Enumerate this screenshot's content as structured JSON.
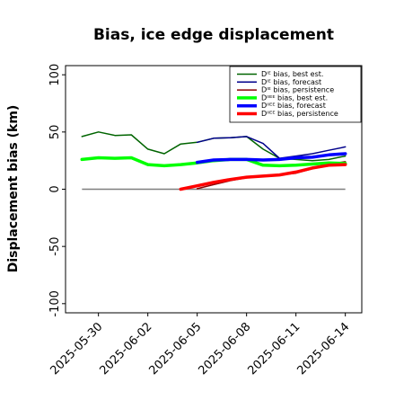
{
  "chart_data": {
    "type": "line",
    "title": "Bias, ice edge displacement",
    "xlabel": "",
    "ylabel": "Displacement bias (km)",
    "x_ticks": [
      "2025-05-30",
      "2025-06-02",
      "2025-06-05",
      "2025-06-08",
      "2025-06-11",
      "2025-06-14"
    ],
    "highlighted_tick": "2025-06-05",
    "highlight_color": "#228B22",
    "y_ticks": [
      -100,
      -50,
      0,
      50,
      100
    ],
    "ylim": [
      -108,
      108
    ],
    "xlim": [
      "2025-05-28",
      "2025-06-15"
    ],
    "grid": false,
    "legend_position": "top-right",
    "reference_line": 0,
    "series": [
      {
        "name": "Dᴵᴱ bias, best est.",
        "color": "#006400",
        "width": 1.5,
        "points": [
          [
            "2025-05-29",
            46
          ],
          [
            "2025-05-30",
            50
          ],
          [
            "2025-05-31",
            47
          ],
          [
            "2025-06-01",
            47.5
          ],
          [
            "2025-06-02",
            35
          ],
          [
            "2025-06-03",
            31
          ],
          [
            "2025-06-04",
            39.5
          ],
          [
            "2025-06-05",
            41
          ],
          [
            "2025-06-06",
            44.5
          ],
          [
            "2025-06-07",
            45
          ],
          [
            "2025-06-08",
            46
          ],
          [
            "2025-06-09",
            35
          ],
          [
            "2025-06-10",
            27
          ],
          [
            "2025-06-11",
            26
          ],
          [
            "2025-06-12",
            25
          ],
          [
            "2025-06-13",
            26
          ],
          [
            "2025-06-14",
            29
          ]
        ]
      },
      {
        "name": "Dᴵᴱ bias, forecast",
        "color": "#00008B",
        "width": 1.5,
        "points": [
          [
            "2025-06-05",
            41
          ],
          [
            "2025-06-06",
            44.5
          ],
          [
            "2025-06-07",
            45
          ],
          [
            "2025-06-08",
            46
          ],
          [
            "2025-06-09",
            40
          ],
          [
            "2025-06-10",
            27
          ],
          [
            "2025-06-11",
            29
          ],
          [
            "2025-06-12",
            31
          ],
          [
            "2025-06-13",
            34
          ],
          [
            "2025-06-14",
            37
          ]
        ]
      },
      {
        "name": "Dᴵᴱ bias, persistence",
        "color": "#8B0000",
        "width": 1.5,
        "points": [
          [
            "2025-06-05",
            0.5
          ],
          [
            "2025-06-06",
            4
          ],
          [
            "2025-06-07",
            7.5
          ],
          [
            "2025-06-08",
            10
          ],
          [
            "2025-06-09",
            12
          ],
          [
            "2025-06-10",
            12.5
          ],
          [
            "2025-06-11",
            14
          ],
          [
            "2025-06-12",
            18
          ],
          [
            "2025-06-13",
            22
          ],
          [
            "2025-06-14",
            24
          ]
        ]
      },
      {
        "name": "Dᴵᴵᴱᴱ bias, best est.",
        "color": "#00FF00",
        "width": 3.5,
        "points": [
          [
            "2025-05-29",
            26
          ],
          [
            "2025-05-30",
            27.5
          ],
          [
            "2025-05-31",
            27
          ],
          [
            "2025-06-01",
            27.5
          ],
          [
            "2025-06-02",
            21.5
          ],
          [
            "2025-06-03",
            20.5
          ],
          [
            "2025-06-04",
            21.5
          ],
          [
            "2025-06-05",
            23
          ],
          [
            "2025-06-06",
            25
          ],
          [
            "2025-06-07",
            26
          ],
          [
            "2025-06-08",
            26
          ],
          [
            "2025-06-09",
            21
          ],
          [
            "2025-06-10",
            20.5
          ],
          [
            "2025-06-11",
            21
          ],
          [
            "2025-06-12",
            22
          ],
          [
            "2025-06-13",
            23
          ],
          [
            "2025-06-14",
            22.5
          ]
        ]
      },
      {
        "name": "Dᴵᴵᴱᴱ bias, forecast",
        "color": "#0000FF",
        "width": 3.5,
        "points": [
          [
            "2025-06-05",
            23.5
          ],
          [
            "2025-06-06",
            25.5
          ],
          [
            "2025-06-07",
            26
          ],
          [
            "2025-06-08",
            26
          ],
          [
            "2025-06-09",
            25.5
          ],
          [
            "2025-06-10",
            26
          ],
          [
            "2025-06-11",
            27.5
          ],
          [
            "2025-06-12",
            28
          ],
          [
            "2025-06-13",
            30
          ],
          [
            "2025-06-14",
            31
          ]
        ]
      },
      {
        "name": "Dᴵᴵᴱᴱ bias, persistence",
        "color": "#FF0000",
        "width": 3.5,
        "points": [
          [
            "2025-06-04",
            0
          ],
          [
            "2025-06-05",
            3
          ],
          [
            "2025-06-06",
            6
          ],
          [
            "2025-06-07",
            8.5
          ],
          [
            "2025-06-08",
            10.5
          ],
          [
            "2025-06-09",
            11.5
          ],
          [
            "2025-06-10",
            12.5
          ],
          [
            "2025-06-11",
            15
          ],
          [
            "2025-06-12",
            18.5
          ],
          [
            "2025-06-13",
            21
          ],
          [
            "2025-06-14",
            21.5
          ]
        ]
      }
    ]
  }
}
